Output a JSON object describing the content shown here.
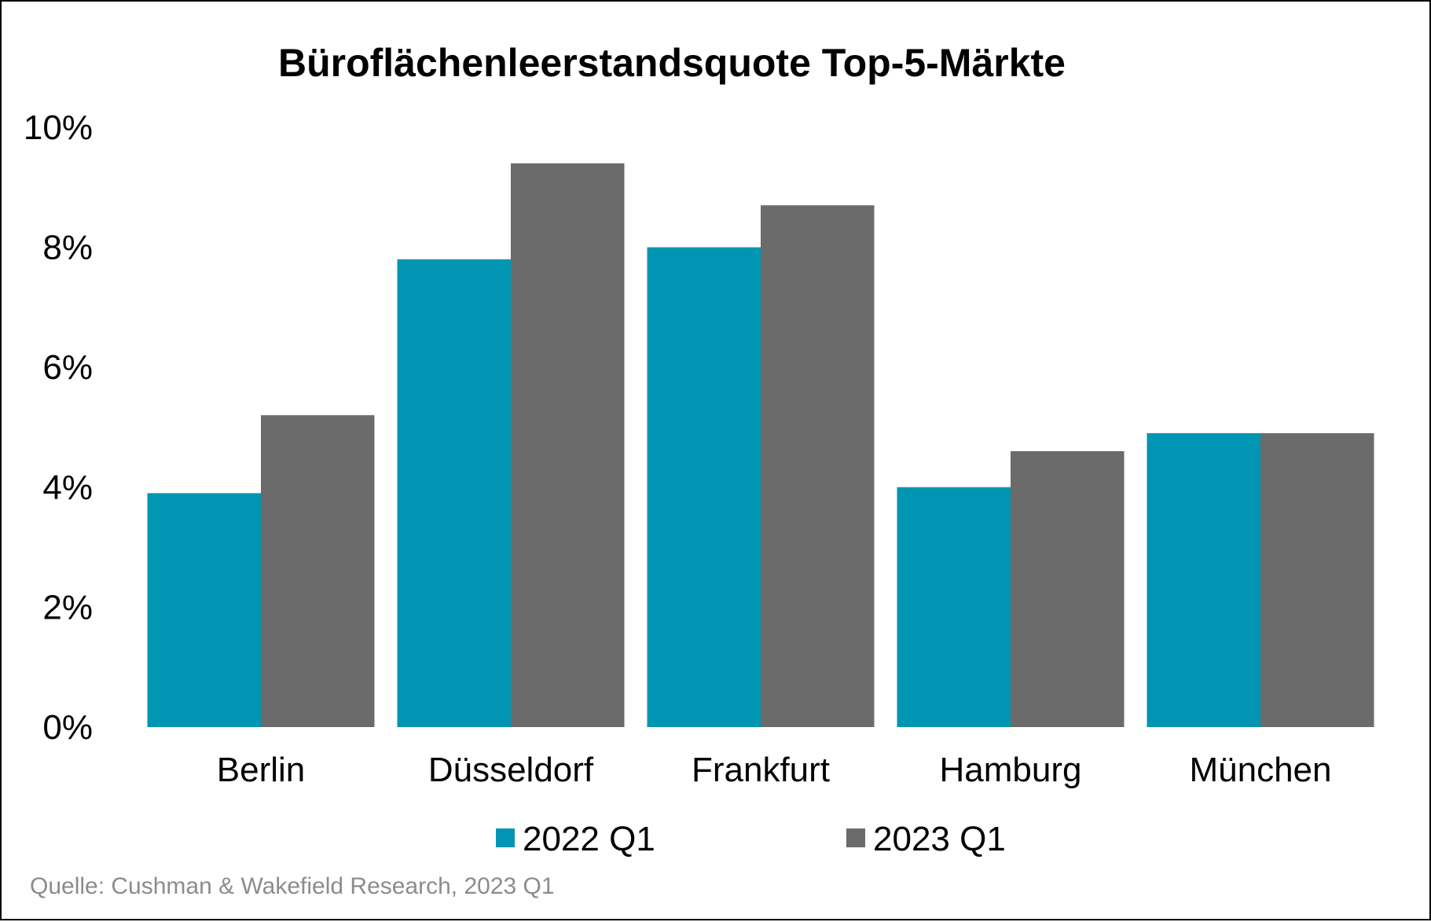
{
  "chart_data": {
    "type": "bar",
    "title": "Büroflächenleerstandsquote Top-5-Märkte",
    "categories": [
      "Berlin",
      "Düsseldorf",
      "Frankfurt",
      "Hamburg",
      "München"
    ],
    "series": [
      {
        "name": "2022 Q1",
        "color": "#0095b3",
        "values": [
          3.9,
          7.8,
          8.0,
          4.0,
          4.9
        ]
      },
      {
        "name": "2023 Q1",
        "color": "#6a6b6a",
        "values": [
          5.2,
          9.4,
          8.7,
          4.6,
          4.9
        ]
      }
    ],
    "ylim": [
      0,
      10
    ],
    "yticks": [
      0,
      2,
      4,
      6,
      8,
      10
    ],
    "ytick_labels": [
      "0%",
      "2%",
      "4%",
      "6%",
      "8%",
      "10%"
    ],
    "xlabel": "",
    "ylabel": "",
    "grid": false,
    "legend": "bottom-center"
  },
  "source": "Quelle: Cushman & Wakefield Research, 2023 Q1"
}
